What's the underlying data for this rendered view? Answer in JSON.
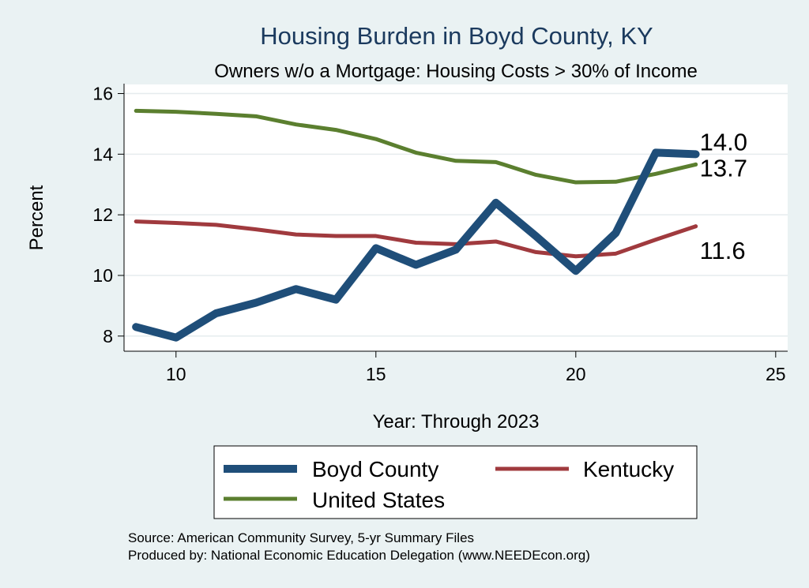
{
  "chart_data": {
    "type": "line",
    "title": "Housing Burden in Boyd County, KY",
    "subtitle": "Owners w/o a Mortgage: Housing Costs > 30% of Income",
    "xlabel": "Year: Through 2023",
    "ylabel": "Percent",
    "xlim": [
      8.7,
      25.3
    ],
    "ylim": [
      7.5,
      16.3
    ],
    "xticks": [
      10,
      15,
      20,
      25
    ],
    "yticks": [
      8,
      10,
      12,
      14,
      16
    ],
    "grid": true,
    "x": [
      9,
      10,
      11,
      12,
      13,
      14,
      15,
      16,
      17,
      18,
      19,
      20,
      21,
      22,
      23
    ],
    "series": [
      {
        "name": "Boyd County",
        "color": "#1f4e79",
        "width": "thick",
        "values": [
          8.3,
          7.95,
          8.75,
          9.1,
          9.55,
          9.2,
          10.9,
          10.35,
          10.85,
          12.4,
          11.3,
          10.15,
          11.4,
          14.05,
          14.0
        ],
        "end_label": "14.0"
      },
      {
        "name": "Kentucky",
        "color": "#a03a3e",
        "width": "medium",
        "values": [
          11.78,
          11.73,
          11.67,
          11.52,
          11.35,
          11.3,
          11.3,
          11.08,
          11.03,
          11.12,
          10.77,
          10.63,
          10.72,
          11.18,
          11.62
        ],
        "end_label": "11.6"
      },
      {
        "name": "United States",
        "color": "#5b7f2f",
        "width": "medium",
        "values": [
          15.43,
          15.4,
          15.33,
          15.25,
          14.98,
          14.8,
          14.5,
          14.05,
          13.78,
          13.74,
          13.32,
          13.07,
          13.09,
          13.35,
          13.66
        ],
        "end_label": "13.7"
      }
    ],
    "legend": {
      "placement": "bottom",
      "entries": [
        "Boyd County",
        "Kentucky",
        "United States"
      ]
    }
  },
  "source_lines": [
    "Source: American Community Survey, 5-yr Summary Files",
    "Produced by: National Economic Education Delegation (www.NEEDEcon.org)"
  ]
}
